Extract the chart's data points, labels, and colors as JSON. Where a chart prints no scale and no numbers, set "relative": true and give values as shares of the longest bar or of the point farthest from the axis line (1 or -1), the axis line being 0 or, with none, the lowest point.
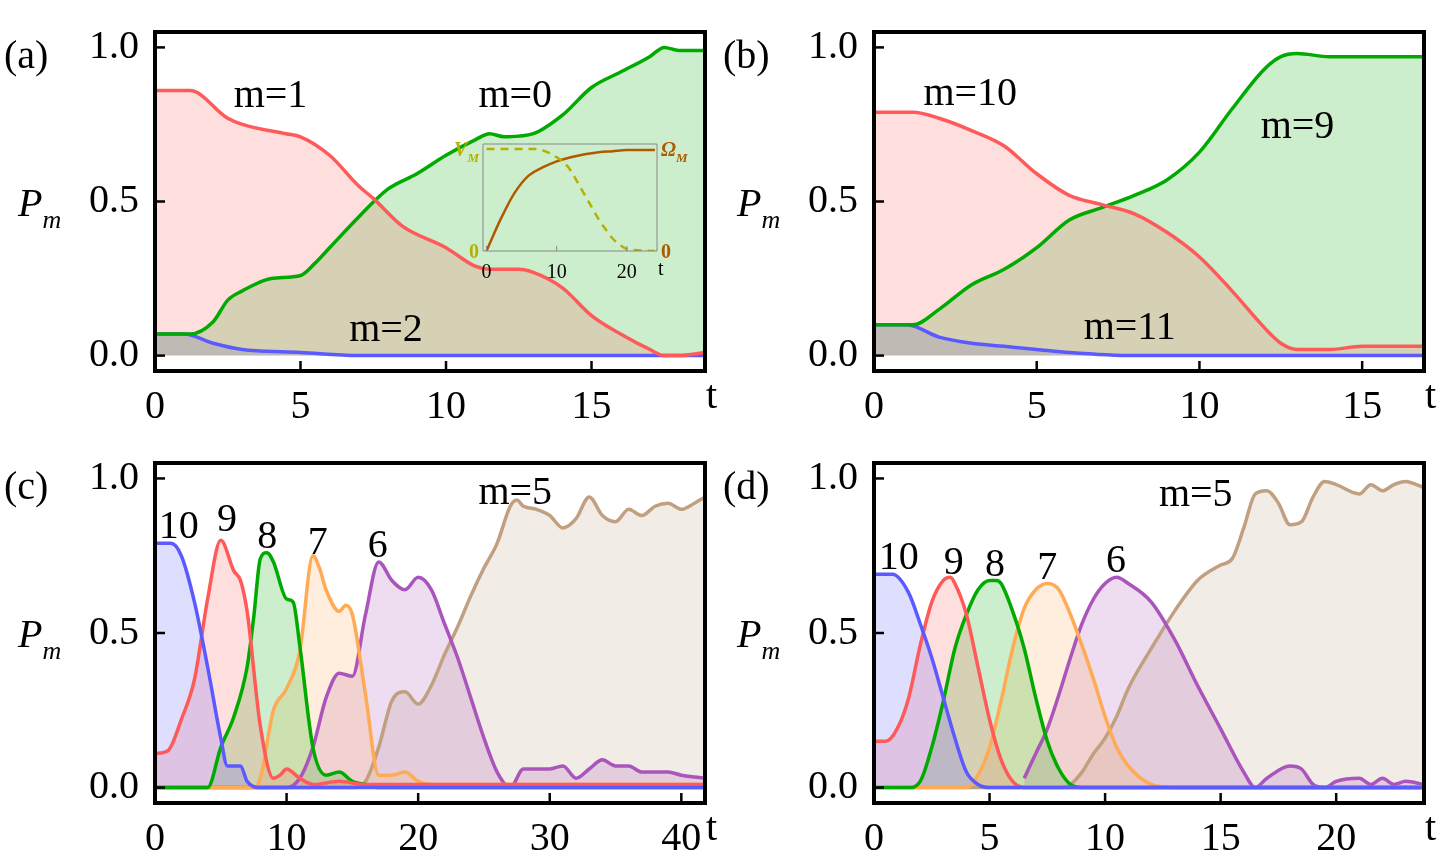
{
  "chart_data": [
    {
      "type": "area",
      "title": "(a)",
      "xlabel": "t",
      "ylabel": "P$_{m}$",
      "xlim": [
        0,
        18.9
      ],
      "xticks": [
        0,
        5,
        10,
        15
      ],
      "ylim": [
        -0.05,
        1.05
      ],
      "yticks": [
        {
          "value": 0,
          "label": "0.0"
        },
        {
          "value": 0.5,
          "label": "0.5"
        },
        {
          "value": 1,
          "label": "1.0"
        }
      ],
      "series": [
        {
          "name": "m=1",
          "color": "#ff5a5a",
          "x": [
            0,
            1.2,
            2.5,
            3,
            4.5,
            5,
            6,
            7,
            7.5,
            8.5,
            10,
            11,
            11.5,
            12.5,
            13,
            14,
            15,
            16,
            17,
            17.5,
            18,
            18.9
          ],
          "values": [
            0.86,
            0.86,
            0.77,
            0.75,
            0.72,
            0.71,
            0.65,
            0.55,
            0.51,
            0.42,
            0.35,
            0.29,
            0.28,
            0.28,
            0.27,
            0.22,
            0.13,
            0.07,
            0.02,
            0,
            0,
            0.01
          ]
        },
        {
          "name": "m=0",
          "color": "#00aa00",
          "x": [
            0,
            1.2,
            2,
            2.5,
            3,
            4,
            5,
            5.5,
            6,
            7,
            8,
            9,
            10,
            11,
            11.5,
            12,
            13,
            14,
            15,
            16,
            17,
            17.5,
            18,
            18.9
          ],
          "values": [
            0.07,
            0.07,
            0.11,
            0.18,
            0.21,
            0.25,
            0.26,
            0.3,
            0.35,
            0.45,
            0.54,
            0.59,
            0.65,
            0.7,
            0.72,
            0.71,
            0.72,
            0.78,
            0.87,
            0.92,
            0.97,
            1,
            0.99,
            0.99
          ]
        },
        {
          "name": "m=2",
          "color": "#5a5aff",
          "x": [
            0,
            1,
            2,
            3,
            5,
            7,
            9,
            18.9
          ],
          "values": [
            0.07,
            0.07,
            0.04,
            0.02,
            0.01,
            0,
            0,
            0
          ]
        }
      ]
    },
    {
      "type": "area",
      "title": "(b)",
      "xlabel": "t",
      "ylabel": "P$_{m}$",
      "xlim": [
        0,
        16.9
      ],
      "xticks": [
        0,
        5,
        10,
        15
      ],
      "ylim": [
        -0.05,
        1.05
      ],
      "yticks": [
        {
          "value": 0,
          "label": "0.0"
        },
        {
          "value": 0.5,
          "label": "0.5"
        },
        {
          "value": 1,
          "label": "1.0"
        }
      ],
      "series": [
        {
          "name": "m=10",
          "color": "#ff5a5a",
          "x": [
            0,
            1.2,
            2,
            3,
            4,
            5,
            6,
            7,
            8,
            9,
            10,
            11,
            12,
            12.5,
            13,
            14,
            15,
            16.9
          ],
          "values": [
            0.79,
            0.79,
            0.77,
            0.73,
            0.68,
            0.59,
            0.52,
            0.49,
            0.46,
            0.4,
            0.32,
            0.21,
            0.09,
            0.04,
            0.02,
            0.02,
            0.03,
            0.03
          ]
        },
        {
          "name": "m=9",
          "color": "#00aa00",
          "x": [
            0,
            1.2,
            2,
            3,
            4,
            5,
            6,
            7,
            8,
            9,
            10,
            11,
            12,
            12.5,
            13,
            14,
            15,
            16.9
          ],
          "values": [
            0.1,
            0.1,
            0.15,
            0.23,
            0.28,
            0.35,
            0.44,
            0.48,
            0.52,
            0.57,
            0.66,
            0.8,
            0.93,
            0.97,
            0.98,
            0.97,
            0.97,
            0.97
          ]
        },
        {
          "name": "m=11",
          "color": "#5a5aff",
          "x": [
            0,
            1,
            2,
            3,
            4,
            5,
            6,
            8,
            16.9
          ],
          "values": [
            0.1,
            0.1,
            0.06,
            0.04,
            0.03,
            0.02,
            0.01,
            0,
            0
          ]
        }
      ]
    },
    {
      "type": "area",
      "title": "(c)",
      "xlabel": "t",
      "ylabel": "P$_{m}$",
      "xlim": [
        0,
        41.8
      ],
      "xticks": [
        0,
        10,
        20,
        30,
        40
      ],
      "ylim": [
        -0.05,
        1.05
      ],
      "yticks": [
        {
          "value": 0,
          "label": "0.0"
        },
        {
          "value": 0.5,
          "label": "0.5"
        },
        {
          "value": 1,
          "label": "1.0"
        }
      ],
      "series": [
        {
          "name": "10",
          "color": "#5a5aff",
          "x": [
            0,
            1.2,
            2,
            3,
            4,
            5,
            5.5,
            6,
            6.5,
            7,
            8,
            41.8
          ],
          "values": [
            0.79,
            0.79,
            0.75,
            0.6,
            0.39,
            0.16,
            0.07,
            0.07,
            0.07,
            0.02,
            0,
            0
          ]
        },
        {
          "name": "9",
          "color": "#ff5a5a",
          "x": [
            0,
            1,
            2,
            3,
            4,
            5,
            6,
            6.5,
            7,
            8,
            9,
            9.5,
            10,
            11,
            12,
            14,
            16,
            41.8
          ],
          "values": [
            0.11,
            0.12,
            0.22,
            0.35,
            0.61,
            0.8,
            0.7,
            0.67,
            0.57,
            0.2,
            0.03,
            0.04,
            0.06,
            0.03,
            0.01,
            0.02,
            0.01,
            0.01
          ]
        },
        {
          "name": "8",
          "color": "#00aa00",
          "x": [
            0,
            4,
            5,
            6,
            7,
            7.5,
            8,
            8.5,
            9,
            10,
            10.5,
            11,
            12,
            13,
            14,
            15,
            16,
            17,
            41.8
          ],
          "values": [
            0,
            0,
            0.13,
            0.23,
            0.39,
            0.55,
            0.74,
            0.76,
            0.73,
            0.61,
            0.6,
            0.46,
            0.13,
            0.04,
            0.05,
            0.02,
            0.01,
            0,
            0
          ]
        },
        {
          "name": "7",
          "color": "#ffaa55",
          "x": [
            0,
            7.5,
            8,
            9,
            10,
            11,
            12,
            12.5,
            13,
            14,
            14.5,
            15,
            16,
            17,
            18,
            19,
            20,
            21,
            41.8
          ],
          "values": [
            0,
            0,
            0.03,
            0.25,
            0.32,
            0.44,
            0.75,
            0.71,
            0.64,
            0.57,
            0.59,
            0.56,
            0.3,
            0.04,
            0.04,
            0.05,
            0.02,
            0.01,
            0.01
          ]
        },
        {
          "name": "6",
          "color": "#aa55bb",
          "x": [
            0,
            10,
            11,
            12,
            13,
            14,
            15,
            16,
            17,
            18,
            19,
            20,
            21,
            22,
            23,
            24,
            25,
            26,
            27,
            28,
            29,
            30,
            31,
            32,
            33,
            34,
            35,
            36,
            37,
            38,
            39,
            40,
            41.8
          ],
          "values": [
            0,
            0,
            0.03,
            0.13,
            0.29,
            0.37,
            0.36,
            0.56,
            0.73,
            0.67,
            0.64,
            0.68,
            0.64,
            0.53,
            0.42,
            0.29,
            0.16,
            0.05,
            0,
            0.06,
            0.06,
            0.06,
            0.07,
            0.03,
            0.06,
            0.09,
            0.07,
            0.07,
            0.05,
            0.05,
            0.05,
            0.04,
            0.03
          ]
        },
        {
          "name": "m=5",
          "color": "#c0a080",
          "x": [
            0,
            15,
            16,
            17,
            18,
            19,
            20,
            21,
            22,
            23,
            24,
            25,
            26,
            27,
            27.5,
            28,
            29,
            30,
            31,
            32,
            33,
            34,
            35,
            36,
            37,
            38,
            39,
            40,
            41,
            41.8
          ],
          "values": [
            0,
            0,
            0.02,
            0.13,
            0.28,
            0.31,
            0.27,
            0.33,
            0.43,
            0.52,
            0.62,
            0.71,
            0.79,
            0.91,
            0.93,
            0.91,
            0.9,
            0.88,
            0.84,
            0.87,
            0.94,
            0.88,
            0.86,
            0.9,
            0.88,
            0.91,
            0.92,
            0.9,
            0.92,
            0.94
          ]
        }
      ]
    },
    {
      "type": "area",
      "title": "(d)",
      "xlabel": "t",
      "ylabel": "P$_{m}$",
      "xlim": [
        0,
        23.8
      ],
      "xticks": [
        0,
        5,
        10,
        15,
        20
      ],
      "ylim": [
        -0.05,
        1.05
      ],
      "yticks": [
        {
          "value": 0,
          "label": "0.0"
        },
        {
          "value": 0.5,
          "label": "0.5"
        },
        {
          "value": 1,
          "label": "1.0"
        }
      ],
      "series": [
        {
          "name": "10",
          "color": "#5a5aff",
          "x": [
            0,
            0.8,
            1.5,
            2,
            2.5,
            3,
            3.5,
            4,
            4.5,
            5,
            23.8
          ],
          "values": [
            0.69,
            0.69,
            0.63,
            0.53,
            0.42,
            0.29,
            0.16,
            0.05,
            0.01,
            0,
            0
          ]
        },
        {
          "name": "9",
          "color": "#ff5a5a",
          "x": [
            0,
            0.5,
            1,
            1.5,
            2,
            2.5,
            3,
            3.3,
            3.5,
            4,
            4.5,
            5,
            5.5,
            6,
            6.5,
            23.8
          ],
          "values": [
            0.15,
            0.15,
            0.19,
            0.29,
            0.46,
            0.6,
            0.67,
            0.68,
            0.66,
            0.56,
            0.39,
            0.22,
            0.09,
            0.02,
            0,
            0
          ]
        },
        {
          "name": "8",
          "color": "#00aa00",
          "x": [
            0,
            1.5,
            2,
            2.5,
            3,
            3.5,
            4,
            4.5,
            5,
            5.3,
            5.5,
            6,
            6.5,
            7,
            7.5,
            8,
            8.5,
            9,
            23.8
          ],
          "values": [
            0,
            0,
            0.02,
            0.13,
            0.28,
            0.45,
            0.56,
            0.64,
            0.67,
            0.67,
            0.66,
            0.57,
            0.45,
            0.29,
            0.15,
            0.06,
            0.01,
            0,
            0
          ]
        },
        {
          "name": "7",
          "color": "#ffaa55",
          "x": [
            0,
            4,
            4.5,
            5,
            5.5,
            6,
            6.5,
            7,
            7.5,
            8,
            8.5,
            9,
            9.5,
            10,
            10.5,
            11,
            12,
            13,
            23.8
          ],
          "values": [
            0,
            0,
            0.04,
            0.13,
            0.28,
            0.45,
            0.58,
            0.64,
            0.66,
            0.64,
            0.56,
            0.46,
            0.35,
            0.23,
            0.13,
            0.07,
            0.01,
            0,
            0
          ]
        },
        {
          "name": "6",
          "color": "#aa55bb",
          "x": [
            6.5,
            7,
            7.5,
            8,
            8.5,
            9,
            9.5,
            10,
            10.5,
            11,
            12,
            13,
            14,
            15,
            16,
            16.5,
            17,
            18,
            18.5,
            19,
            19.5,
            20,
            21,
            21.5,
            22,
            22.5,
            23,
            23.8
          ],
          "values": [
            0.03,
            0.11,
            0.19,
            0.3,
            0.42,
            0.53,
            0.61,
            0.66,
            0.68,
            0.66,
            0.6,
            0.48,
            0.33,
            0.19,
            0.05,
            0,
            0.03,
            0.07,
            0.06,
            0.01,
            0,
            0.02,
            0.03,
            0.01,
            0.03,
            0.01,
            0.02,
            0.01
          ]
        },
        {
          "name": "m=5",
          "color": "#c0a080",
          "x": [
            0,
            8,
            8.5,
            9,
            9.5,
            10,
            10.5,
            11,
            12,
            13,
            14,
            15,
            15.5,
            16,
            16.5,
            17,
            17.5,
            18,
            18.5,
            19,
            19.5,
            20,
            21,
            21.5,
            22,
            22.5,
            23,
            23.8
          ],
          "values": [
            0,
            0,
            0.01,
            0.05,
            0.11,
            0.16,
            0.23,
            0.32,
            0.45,
            0.57,
            0.67,
            0.72,
            0.74,
            0.84,
            0.95,
            0.96,
            0.92,
            0.85,
            0.86,
            0.94,
            0.99,
            0.98,
            0.95,
            0.98,
            0.96,
            0.98,
            0.99,
            0.97
          ]
        }
      ]
    },
    {
      "type": "line",
      "relative": true,
      "xlabel": "t",
      "ylabel": "V$_{M}$",
      "y2label": "Ω$_{M}$",
      "xlim": [
        -0.5,
        24.3
      ],
      "xticks": [
        0,
        10,
        20
      ],
      "annotations": [
        "0",
        "0"
      ],
      "series": [
        {
          "color": "#b5b000",
          "line_style": "dashed",
          "x": [
            0,
            7,
            9,
            10,
            11,
            12,
            13,
            14,
            15,
            16,
            17,
            18,
            19,
            20,
            21,
            24
          ],
          "values": [
            1,
            1,
            0.96,
            0.92,
            0.87,
            0.79,
            0.67,
            0.55,
            0.43,
            0.31,
            0.21,
            0.12,
            0.06,
            0.02,
            0.01,
            0
          ]
        },
        {
          "color": "#b05a00",
          "axis": "y2",
          "line_style": "solid",
          "x": [
            0,
            2,
            4,
            6,
            8,
            10,
            12,
            14,
            16,
            18,
            20,
            24
          ],
          "values": [
            0,
            0.31,
            0.57,
            0.74,
            0.82,
            0.88,
            0.92,
            0.95,
            0.97,
            0.98,
            0.99,
            0.99
          ]
        }
      ]
    }
  ]
}
